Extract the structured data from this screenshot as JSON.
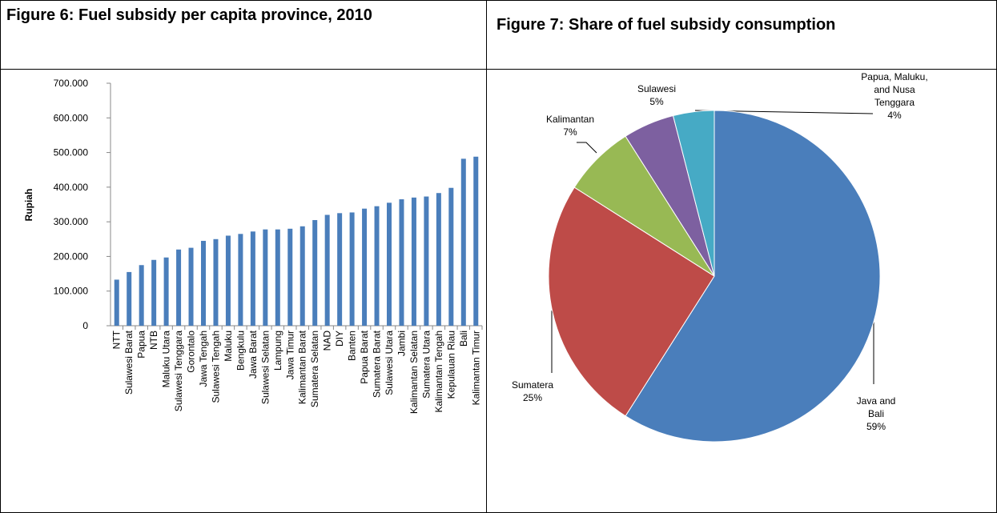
{
  "chart_data": [
    {
      "type": "bar",
      "title": "Figure 6:  Fuel subsidy per capita province, 2010",
      "y_label": "Rupiah",
      "color": "#4a7ebb",
      "categories": [
        "NTT",
        "Sulawesi Barat",
        "Papua",
        "NTB",
        "Maluku Utara",
        "Sulawesi Tenggara",
        "Gorontalo",
        "Jawa Tengah",
        "Sulawesi Tengah",
        "Maluku",
        "Bengkulu",
        "Jawa Barat",
        "Sulawesi Selatan",
        "Lampung",
        "Jawa Timur",
        "Kalimantan Barat",
        "Sumatera Selatan",
        "NAD",
        "DIY",
        "Banten",
        "Papua Barat",
        "Sumatera Barat",
        "Sulawesi Utara",
        "Jambi",
        "Kalimantan Selatan",
        "Sumatera Utara",
        "Kalimantan Tengah",
        "Kepulauan Riau",
        "Bali",
        "Kalimantan Timur"
      ],
      "values": [
        133000,
        155000,
        175000,
        190000,
        197000,
        220000,
        225000,
        245000,
        250000,
        260000,
        265000,
        272000,
        278000,
        278000,
        280000,
        287000,
        305000,
        320000,
        325000,
        327000,
        338000,
        345000,
        355000,
        365000,
        370000,
        373000,
        383000,
        398000,
        482000,
        488000
      ],
      "ylim": [
        0,
        700000
      ],
      "yticks": [
        0,
        {
          "value": 100000,
          "label": "100.000"
        },
        {
          "value": 200000,
          "label": "200.000"
        },
        {
          "value": 300000,
          "label": "300.000"
        },
        {
          "value": 400000,
          "label": "400.000"
        },
        {
          "value": 500000,
          "label": "500.000"
        },
        {
          "value": 600000,
          "label": "600.000"
        },
        {
          "value": 700000,
          "label": "700.000"
        }
      ]
    },
    {
      "type": "pie",
      "title": "Figure 7: Share of fuel subsidy consumption",
      "categories": [
        "Java and Bali",
        "Sumatera",
        "Kalimantan",
        "Sulawesi",
        "Papua, Maluku, and Nusa Tenggara"
      ],
      "values": [
        59,
        25,
        7,
        5,
        4
      ],
      "value_labels": [
        "59%",
        "25%",
        "7%",
        "5%",
        "4%"
      ],
      "colors": [
        "#4a7ebb",
        "#be4b48",
        "#98b954",
        "#7d60a0",
        "#46aac5"
      ]
    }
  ]
}
